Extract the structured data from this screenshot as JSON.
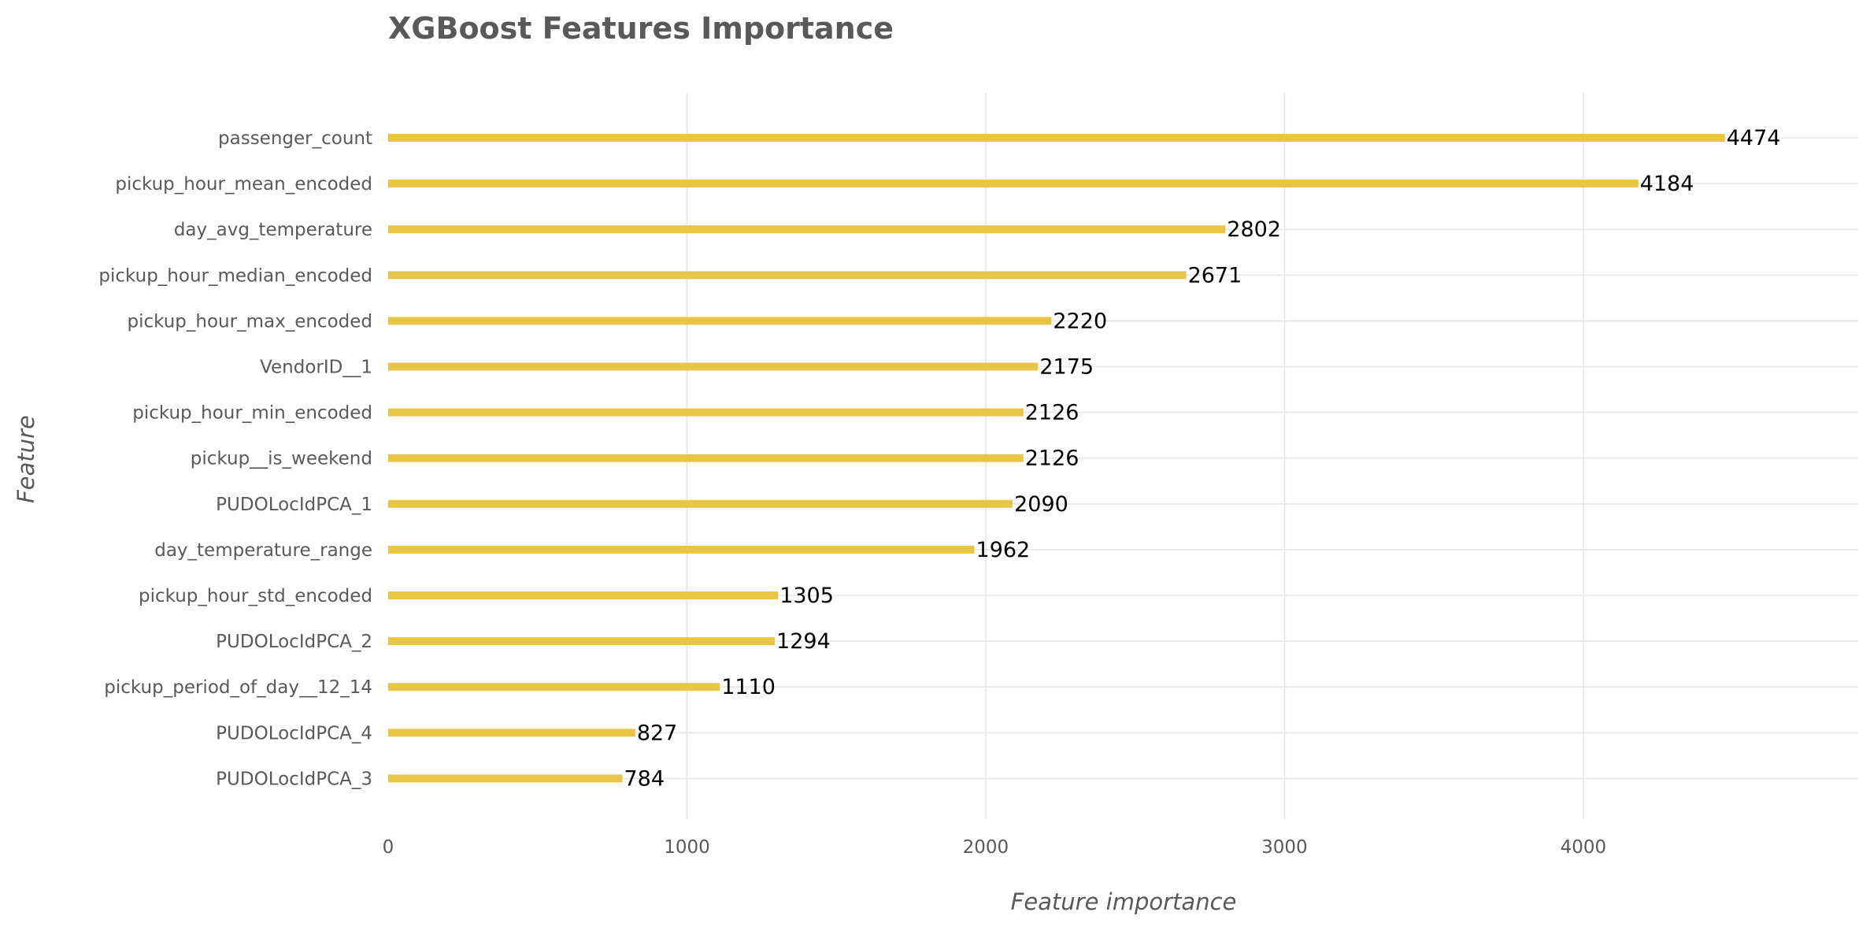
{
  "chart_data": {
    "type": "bar",
    "orientation": "horizontal",
    "title": "XGBoost Features Importance",
    "xlabel": "Feature importance",
    "ylabel": "Feature",
    "categories": [
      "passenger_count",
      "pickup_hour_mean_encoded",
      "day_avg_temperature",
      "pickup_hour_median_encoded",
      "pickup_hour_max_encoded",
      "VendorID__1",
      "pickup_hour_min_encoded",
      "pickup__is_weekend",
      "PUDOLocIdPCA_1",
      "day_temperature_range",
      "pickup_hour_std_encoded",
      "PUDOLocIdPCA_2",
      "pickup_period_of_day__12_14",
      "PUDOLocIdPCA_4",
      "PUDOLocIdPCA_3"
    ],
    "values": [
      4474,
      4184,
      2802,
      2671,
      2220,
      2175,
      2126,
      2126,
      2090,
      1962,
      1305,
      1294,
      1110,
      827,
      784
    ],
    "xticks": [
      0,
      1000,
      2000,
      3000,
      4000
    ],
    "xlim": [
      0,
      4920
    ],
    "grid": true,
    "legend": "none",
    "bar_color": "#e8c547",
    "grid_color": "#e6e6e6",
    "text_color": "#595959",
    "label_color": "#000000"
  }
}
